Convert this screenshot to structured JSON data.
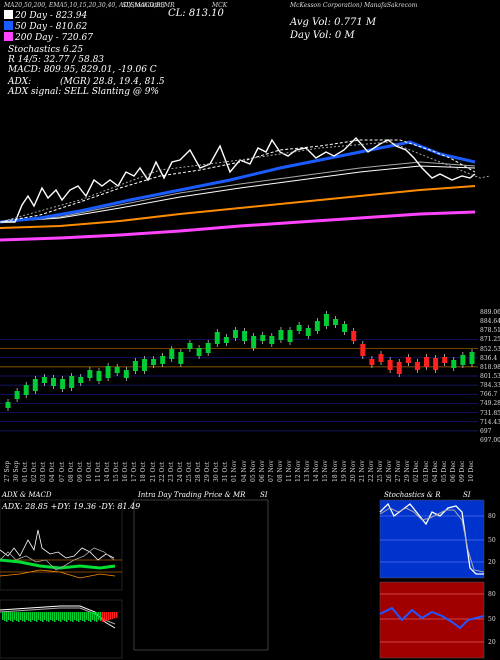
{
  "header": {
    "line": "MA20,50,200, EMA5,10,15,20,30,40, ADX,MACD,BB",
    "stoch": "SI,Stochastic,MR",
    "cl": "CL: 813.10",
    "ticker": "MCK",
    "company": "McKesson Corporation) ManafaSakrecom"
  },
  "ma_info": [
    {
      "text": "20 Day - 823.94",
      "color": "#ffffff"
    },
    {
      "text": "50 Day - 810.62",
      "color": "#1a5cff"
    },
    {
      "text": "200 Day - 720.67",
      "color": "#ff44ff"
    }
  ],
  "stats": {
    "stoch": "Stochastics 6.25",
    "r": "R 14/5: 32.77 / 58.83",
    "macd": "MACD: 809.95, 829.01, -19.06 C",
    "adx": "ADX:",
    "adx_signal": "ADX signal: SELL Slanting @ 9%",
    "mgr": "(MGR) 28.8, 19.4, 81.5",
    "avg_vol": "Avg Vol: 0.771 M",
    "day_vol": "Day Vol: 0  M"
  },
  "candle_chart": {
    "price_labels": [
      "889.06",
      "884.64",
      "878.51",
      "871.25",
      "852.53",
      "836.4",
      "818.98",
      "801.53",
      "784.33",
      "766.7",
      "749.28",
      "731.85",
      "714.43",
      "697",
      "697.00"
    ],
    "x_labels": [
      "27 Sep",
      "30 Sep",
      "01 Oct",
      "02 Oct",
      "03 Oct",
      "04 Oct",
      "07 Oct",
      "08 Oct",
      "09 Oct",
      "10 Oct",
      "11 Oct",
      "14 Oct",
      "15 Oct",
      "16 Oct",
      "17 Oct",
      "18 Oct",
      "21 Oct",
      "22 Oct",
      "23 Oct",
      "24 Oct",
      "25 Oct",
      "28 Oct",
      "29 Oct",
      "30 Oct",
      "31 Oct",
      "01 Nov",
      "04 Nov",
      "05 Nov",
      "06 Nov",
      "07 Nov",
      "08 Nov",
      "11 Nov",
      "12 Nov",
      "13 Nov",
      "14 Nov",
      "15 Nov",
      "18 Nov",
      "19 Nov",
      "20 Nov",
      "21 Nov",
      "22 Nov",
      "25 Nov",
      "26 Nov",
      "27 Nov",
      "29 Nov",
      "02 Dec",
      "03 Dec",
      "04 Dec",
      "05 Dec",
      "06 Dec",
      "09 Dec",
      "10 Dec"
    ]
  },
  "panels": {
    "adx_title": "ADX  & MACD",
    "adx_legend": "ADX: 28.85  +DY: 19.36  -DY: 81.49",
    "intraday_title": "Intra  Day Trading Price  & MR",
    "intraday_si": "SI",
    "stoch_title": "Stochastics & R",
    "stoch_si": "SI",
    "stoch_ticks": [
      "80",
      "50",
      "20"
    ],
    "r_ticks": [
      "80",
      "50",
      "20"
    ]
  },
  "colors": {
    "ma20": "#ffffff",
    "ma50": "#1a5cff",
    "ma200": "#ff44ff",
    "ema_orange": "#ff8c00",
    "up": "#00cc33",
    "down": "#ff2020",
    "grid_orange": "#b36b00",
    "grid_blue": "#1a1a80",
    "r_bg": "#a00000",
    "stoch_blue": "#0033cc"
  }
}
